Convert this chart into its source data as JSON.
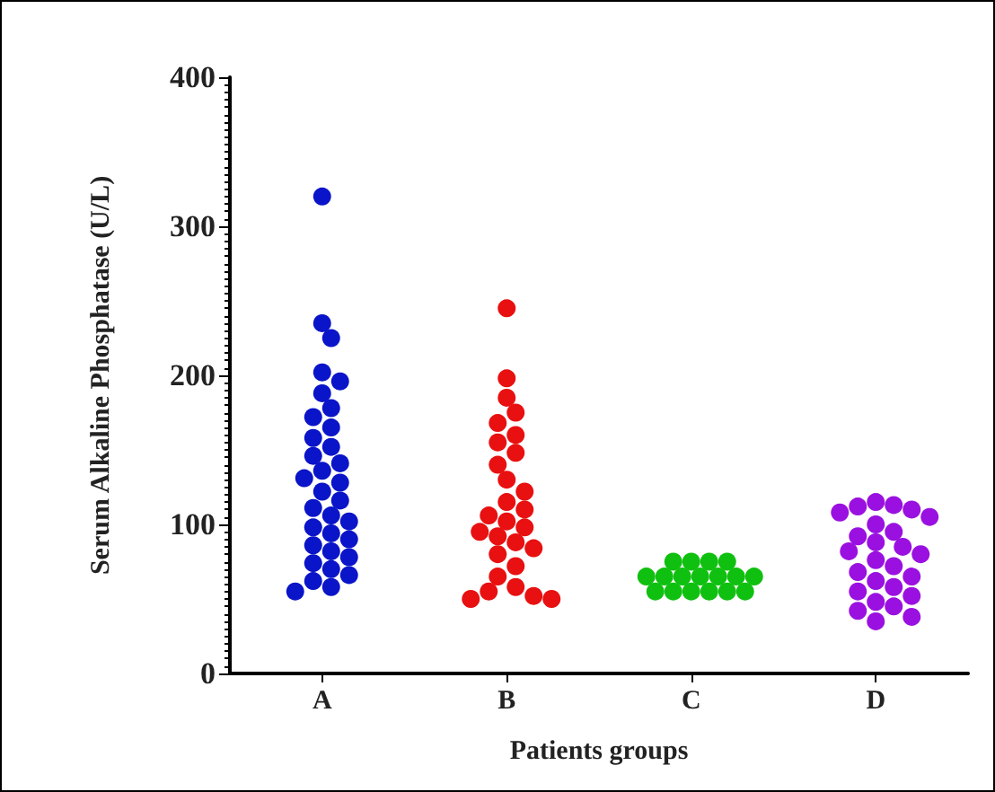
{
  "chart_data": {
    "type": "scatter",
    "xlabel": "Patients groups",
    "ylabel": "Serum Alkaline Phosphatase (U/L)",
    "categories": [
      "A",
      "B",
      "C",
      "D"
    ],
    "ylim": [
      0,
      400
    ],
    "yticks": [
      0,
      100,
      200,
      300,
      400
    ],
    "grid": false,
    "marker": "circle",
    "series": [
      {
        "color": "#0a14c8",
        "x": [
          "A",
          "A",
          "A",
          "A",
          "A",
          "A",
          "A",
          "A",
          "A",
          "A",
          "A",
          "A",
          "A",
          "A",
          "A",
          "A",
          "A",
          "A",
          "A",
          "A",
          "A",
          "A",
          "A",
          "A",
          "A",
          "A",
          "A",
          "A",
          "A",
          "A",
          "A",
          "A",
          "A"
        ],
        "values": [
          320,
          235,
          225,
          202,
          196,
          188,
          178,
          172,
          165,
          158,
          152,
          146,
          141,
          136,
          131,
          128,
          122,
          116,
          111,
          106,
          102,
          98,
          94,
          90,
          86,
          82,
          78,
          74,
          70,
          66,
          62,
          58,
          55
        ]
      },
      {
        "color": "#e81010",
        "x": [
          "B",
          "B",
          "B",
          "B",
          "B",
          "B",
          "B",
          "B",
          "B",
          "B",
          "B",
          "B",
          "B",
          "B",
          "B",
          "B",
          "B",
          "B",
          "B",
          "B",
          "B",
          "B",
          "B",
          "B",
          "B",
          "B",
          "B",
          "B"
        ],
        "values": [
          245,
          198,
          185,
          175,
          168,
          160,
          155,
          148,
          140,
          130,
          122,
          115,
          110,
          106,
          102,
          98,
          95,
          92,
          88,
          84,
          80,
          72,
          65,
          58,
          55,
          52,
          50,
          50
        ]
      },
      {
        "color": "#10c010",
        "x": [
          "C",
          "C",
          "C",
          "C",
          "C",
          "C",
          "C",
          "C",
          "C",
          "C",
          "C",
          "C",
          "C",
          "C",
          "C",
          "C",
          "C"
        ],
        "values": [
          75,
          75,
          75,
          75,
          65,
          65,
          65,
          65,
          65,
          65,
          65,
          55,
          55,
          55,
          55,
          55,
          55
        ]
      },
      {
        "color": "#9a10e0",
        "x": [
          "D",
          "D",
          "D",
          "D",
          "D",
          "D",
          "D",
          "D",
          "D",
          "D",
          "D",
          "D",
          "D",
          "D",
          "D",
          "D",
          "D",
          "D",
          "D",
          "D",
          "D",
          "D",
          "D",
          "D",
          "D",
          "D"
        ],
        "values": [
          115,
          113,
          112,
          110,
          108,
          105,
          100,
          95,
          92,
          88,
          85,
          82,
          80,
          76,
          72,
          68,
          65,
          62,
          58,
          55,
          52,
          48,
          45,
          42,
          38,
          35
        ]
      }
    ]
  }
}
